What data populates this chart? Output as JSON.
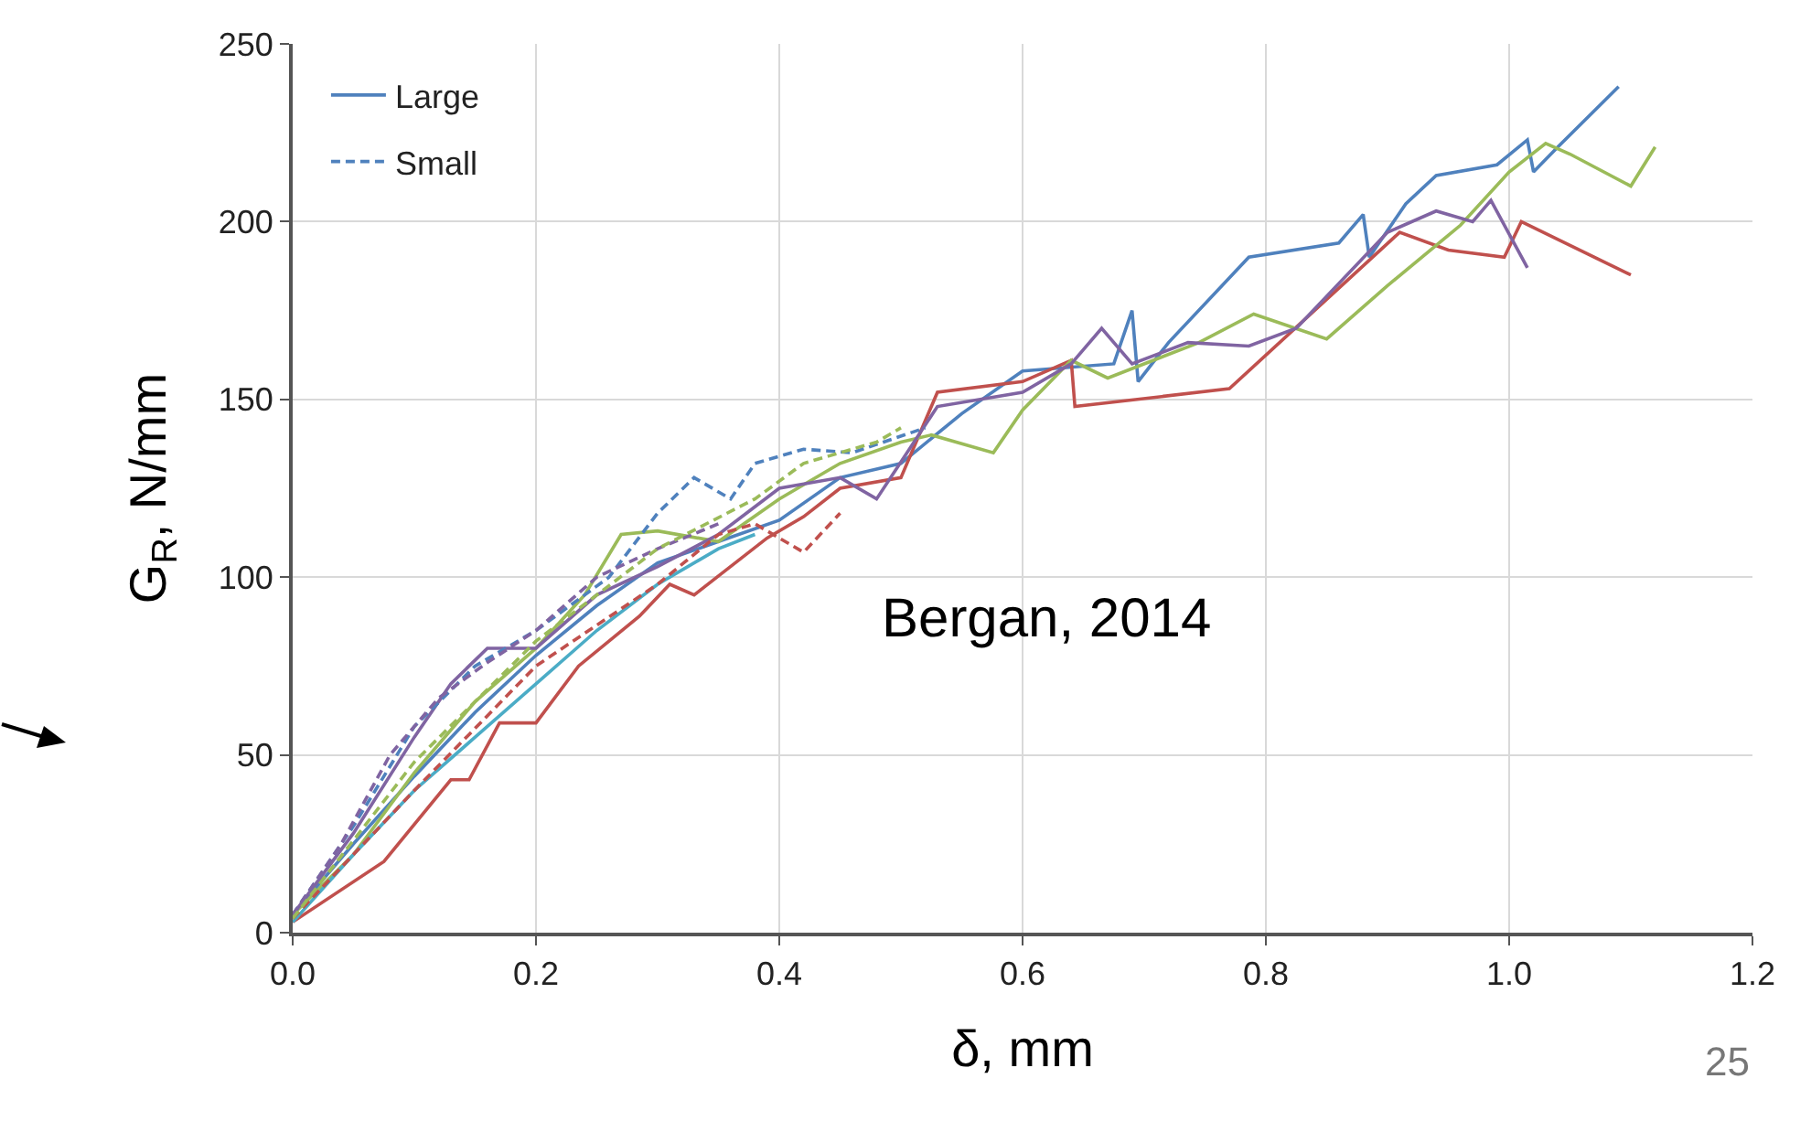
{
  "chart_data": {
    "type": "line",
    "xlabel": "δ, mm",
    "ylabel": "G$_{R}$, N/mm",
    "xlim": [
      0,
      1.2
    ],
    "xticks": [
      {
        "value": 0,
        "label": "0.0"
      },
      {
        "value": 0.2,
        "label": "0.2"
      },
      {
        "value": 0.4,
        "label": "0.4"
      },
      {
        "value": 0.6,
        "label": "0.6"
      },
      {
        "value": 0.8,
        "label": "0.8"
      },
      {
        "value": 1,
        "label": "1.0"
      },
      {
        "value": 1.2,
        "label": "1.2"
      }
    ],
    "ylim": [
      0,
      250
    ],
    "yticks": [
      0,
      50,
      100,
      150,
      200,
      250
    ],
    "grid": true,
    "legend": "top left",
    "marker": "none",
    "annotations": [
      "Bergan, 2014",
      "25"
    ],
    "series": [
      {
        "name": "Large",
        "color": "#4f81bd",
        "line_style": "solid",
        "x": [
          0,
          0.05,
          0.1,
          0.15,
          0.2,
          0.25,
          0.3,
          0.35,
          0.4,
          0.45,
          0.5,
          0.55,
          0.6,
          0.675,
          0.69,
          0.695,
          0.72,
          0.786,
          0.86,
          0.88,
          0.885,
          0.915,
          0.94,
          0.99,
          1.015,
          1.02,
          1.04,
          1.09
        ],
        "values": [
          5,
          25,
          44,
          62,
          78,
          92,
          104,
          110,
          116,
          128,
          132,
          146,
          158,
          160,
          175,
          155,
          166,
          190,
          194,
          202,
          190,
          205,
          213,
          216,
          223,
          214,
          221,
          238
        ]
      },
      {
        "color": "#c0504d",
        "line_style": "solid",
        "x": [
          0,
          0.075,
          0.13,
          0.145,
          0.17,
          0.2,
          0.235,
          0.285,
          0.31,
          0.33,
          0.39,
          0.42,
          0.45,
          0.5,
          0.53,
          0.6,
          0.64,
          0.643,
          0.77,
          0.91,
          0.95,
          0.996,
          1.01,
          1.1
        ],
        "values": [
          3,
          20,
          43,
          43,
          59,
          59,
          75,
          89,
          98,
          95,
          111,
          117,
          125,
          128,
          152,
          155,
          161,
          148,
          153,
          197,
          192,
          190,
          200,
          185
        ]
      },
      {
        "color": "#9bbb59",
        "line_style": "solid",
        "x": [
          0,
          0.05,
          0.1,
          0.15,
          0.2,
          0.24,
          0.27,
          0.3,
          0.35,
          0.4,
          0.45,
          0.5,
          0.525,
          0.576,
          0.6,
          0.64,
          0.67,
          0.745,
          0.79,
          0.85,
          0.9,
          0.96,
          1,
          1.03,
          1.05,
          1.1,
          1.12
        ],
        "values": [
          5,
          22,
          45,
          65,
          80,
          95,
          112,
          113,
          110,
          122,
          132,
          138,
          140,
          135,
          147,
          161,
          156,
          166,
          174,
          167,
          182,
          199,
          214,
          222,
          219,
          210,
          221
        ]
      },
      {
        "color": "#8064a2",
        "line_style": "solid",
        "x": [
          0,
          0.05,
          0.1,
          0.13,
          0.16,
          0.2,
          0.25,
          0.3,
          0.35,
          0.4,
          0.45,
          0.48,
          0.53,
          0.6,
          0.64,
          0.665,
          0.69,
          0.736,
          0.786,
          0.825,
          0.9,
          0.94,
          0.97,
          0.985,
          1.015
        ],
        "values": [
          5,
          28,
          55,
          70,
          80,
          80,
          95,
          103,
          112,
          125,
          128,
          122,
          148,
          152,
          160,
          170,
          160,
          166,
          165,
          170,
          197,
          203,
          200,
          206,
          187
        ]
      },
      {
        "color": "#4bacc6",
        "line_style": "solid",
        "x": [
          0,
          0.05,
          0.1,
          0.15,
          0.2,
          0.25,
          0.3,
          0.35,
          0.38
        ],
        "values": [
          3,
          22,
          40,
          55,
          70,
          85,
          98,
          108,
          112
        ]
      },
      {
        "name": "Small",
        "color": "#4f81bd",
        "line_style": "dashed",
        "x": [
          0,
          0.05,
          0.1,
          0.15,
          0.2,
          0.26,
          0.3,
          0.33,
          0.36,
          0.38,
          0.42,
          0.46,
          0.52
        ],
        "values": [
          5,
          30,
          58,
          75,
          85,
          100,
          118,
          128,
          122,
          132,
          136,
          135,
          142
        ]
      },
      {
        "color": "#8064a2",
        "line_style": "dashed",
        "x": [
          0,
          0.04,
          0.08,
          0.12,
          0.16,
          0.2,
          0.25,
          0.3,
          0.35
        ],
        "values": [
          5,
          25,
          50,
          66,
          76,
          85,
          100,
          108,
          115
        ]
      },
      {
        "color": "#c0504d",
        "line_style": "dashed",
        "x": [
          0,
          0.1,
          0.2,
          0.3,
          0.35,
          0.38,
          0.42,
          0.45
        ],
        "values": [
          4,
          40,
          75,
          98,
          112,
          115,
          107,
          118
        ]
      },
      {
        "color": "#9bbb59",
        "line_style": "dashed",
        "x": [
          0,
          0.1,
          0.2,
          0.3,
          0.38,
          0.42,
          0.48,
          0.5
        ],
        "values": [
          4,
          48,
          82,
          108,
          122,
          132,
          138,
          142
        ]
      }
    ]
  }
}
